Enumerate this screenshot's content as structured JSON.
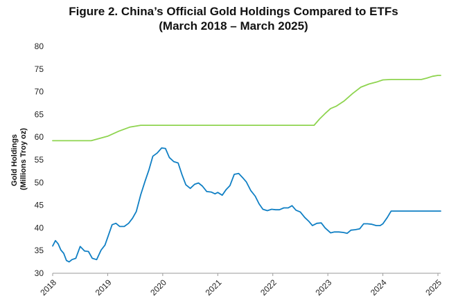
{
  "chart_data": {
    "type": "line",
    "title": "Figure 2. China’s Official Gold Holdings Compared to ETFs",
    "subtitle": "(March 2018 – March 2025)",
    "ylabel_line1": "Gold Holdings",
    "ylabel_line2": "(Millions Troy oz)",
    "xlabel": "",
    "ylim": [
      30,
      80
    ],
    "yticks": [
      30,
      35,
      40,
      45,
      50,
      55,
      60,
      65,
      70,
      75,
      80
    ],
    "xlim": [
      2018.0,
      2025.05
    ],
    "xticks": [
      2018,
      2019,
      2020,
      2021,
      2022,
      2023,
      2024,
      2025
    ],
    "grid": false,
    "legend": "none",
    "series": [
      {
        "color": "#8ed44f",
        "x": [
          2018.0,
          2018.4,
          2018.7,
          2019.0,
          2019.2,
          2019.4,
          2019.6,
          2019.8,
          2020.0,
          2020.5,
          2021.0,
          2021.5,
          2022.0,
          2022.5,
          2022.75,
          2022.85,
          2022.95,
          2023.05,
          2023.15,
          2023.3,
          2023.45,
          2023.6,
          2023.75,
          2023.9,
          2024.0,
          2024.15,
          2024.3,
          2024.5,
          2024.6,
          2024.7,
          2024.8,
          2024.9,
          2025.0,
          2025.05
        ],
        "values": [
          59.2,
          59.2,
          59.2,
          60.2,
          61.3,
          62.2,
          62.6,
          62.6,
          62.6,
          62.6,
          62.6,
          62.6,
          62.6,
          62.6,
          62.6,
          64.0,
          65.2,
          66.3,
          66.8,
          68.0,
          69.6,
          71.0,
          71.7,
          72.2,
          72.6,
          72.7,
          72.7,
          72.7,
          72.7,
          72.7,
          73.0,
          73.4,
          73.6,
          73.6
        ]
      },
      {
        "color": "#0f7fc4",
        "x": [
          2018.0,
          2018.05,
          2018.1,
          2018.15,
          2018.2,
          2018.25,
          2018.3,
          2018.35,
          2018.42,
          2018.5,
          2018.58,
          2018.65,
          2018.72,
          2018.8,
          2018.88,
          2018.95,
          2019.0,
          2019.08,
          2019.15,
          2019.22,
          2019.3,
          2019.38,
          2019.45,
          2019.52,
          2019.6,
          2019.68,
          2019.75,
          2019.82,
          2019.9,
          2019.98,
          2020.05,
          2020.12,
          2020.2,
          2020.28,
          2020.35,
          2020.42,
          2020.5,
          2020.58,
          2020.65,
          2020.72,
          2020.8,
          2020.88,
          2020.95,
          2021.0,
          2021.08,
          2021.15,
          2021.22,
          2021.3,
          2021.38,
          2021.45,
          2021.52,
          2021.6,
          2021.68,
          2021.75,
          2021.82,
          2021.9,
          2021.98,
          2022.05,
          2022.12,
          2022.2,
          2022.28,
          2022.35,
          2022.42,
          2022.5,
          2022.58,
          2022.65,
          2022.72,
          2022.8,
          2022.88,
          2022.95,
          2023.05,
          2023.12,
          2023.2,
          2023.28,
          2023.35,
          2023.42,
          2023.5,
          2023.58,
          2023.65,
          2023.72,
          2023.8,
          2023.88,
          2023.95,
          2024.0,
          2024.08,
          2024.15,
          2024.22,
          2024.3,
          2024.38,
          2024.45,
          2024.52,
          2024.6,
          2024.68,
          2024.75,
          2024.82,
          2024.9,
          2024.97,
          2025.05
        ],
        "values": [
          36.0,
          37.2,
          36.5,
          35.1,
          34.4,
          32.8,
          32.5,
          33.0,
          33.3,
          35.9,
          34.9,
          34.8,
          33.3,
          33.0,
          35.1,
          36.2,
          37.9,
          40.7,
          41.0,
          40.3,
          40.3,
          41.0,
          42.1,
          43.6,
          47.3,
          50.3,
          52.8,
          55.8,
          56.5,
          57.6,
          57.5,
          55.5,
          54.6,
          54.3,
          51.7,
          49.5,
          48.7,
          49.6,
          49.9,
          49.2,
          48.0,
          47.9,
          47.5,
          47.8,
          47.2,
          48.4,
          49.3,
          51.8,
          52.0,
          51.1,
          50.1,
          48.2,
          47.0,
          45.3,
          44.1,
          43.8,
          44.1,
          44.0,
          44.0,
          44.4,
          44.4,
          44.9,
          43.9,
          43.5,
          42.3,
          41.5,
          40.5,
          41.0,
          41.1,
          40.0,
          38.9,
          39.1,
          39.1,
          39.0,
          38.8,
          39.5,
          39.6,
          39.8,
          40.9,
          40.9,
          40.8,
          40.5,
          40.5,
          40.9,
          42.3,
          43.7,
          43.7,
          43.7,
          43.7,
          43.7,
          43.7,
          43.7,
          43.7,
          43.7,
          43.7,
          43.7,
          43.7,
          43.7
        ]
      }
    ]
  }
}
